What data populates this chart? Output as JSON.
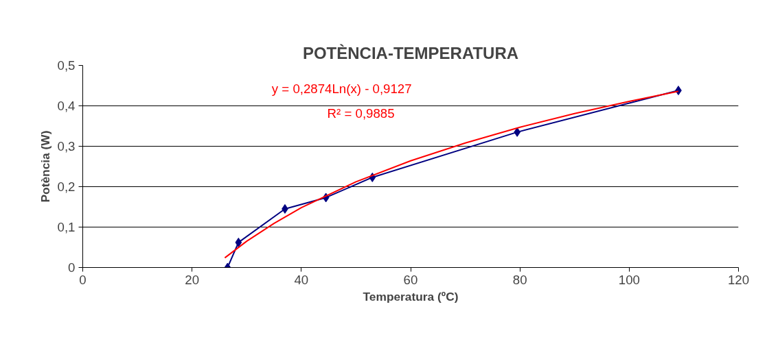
{
  "chart_data": {
    "type": "line",
    "title": "POTÈNCIA-TEMPERATURA",
    "xlabel": "Temperatura (ºC)",
    "ylabel": "Potència (W)",
    "xlim": [
      0,
      120
    ],
    "xticks": [
      0,
      20,
      40,
      60,
      80,
      100,
      120
    ],
    "ylim": [
      0,
      0.5
    ],
    "yticks": [
      {
        "value": 0,
        "label": "0"
      },
      {
        "value": 0.1,
        "label": "0,1"
      },
      {
        "value": 0.2,
        "label": "0,2"
      },
      {
        "value": 0.3,
        "label": "0,3"
      },
      {
        "value": 0.4,
        "label": "0,4"
      },
      {
        "value": 0.5,
        "label": "0,5"
      }
    ],
    "grid": "y",
    "series": [
      {
        "color": "#000080",
        "marker": "diamond",
        "x": [
          26.5,
          28.5,
          37,
          44.5,
          53,
          79.5,
          109
        ],
        "values": [
          0,
          0.062,
          0.145,
          0.173,
          0.223,
          0.335,
          0.438
        ]
      },
      {
        "color": "#ff0000",
        "marker": "none",
        "x": [
          26,
          30,
          35,
          40,
          50,
          60,
          70,
          80,
          90,
          100,
          109
        ],
        "values": [
          0.024,
          0.065,
          0.109,
          0.148,
          0.212,
          0.264,
          0.308,
          0.347,
          0.381,
          0.411,
          0.436
        ]
      }
    ],
    "annotations": [
      "y = 0,2874Ln(x) - 0,9127",
      "R² = 0,9885"
    ]
  }
}
